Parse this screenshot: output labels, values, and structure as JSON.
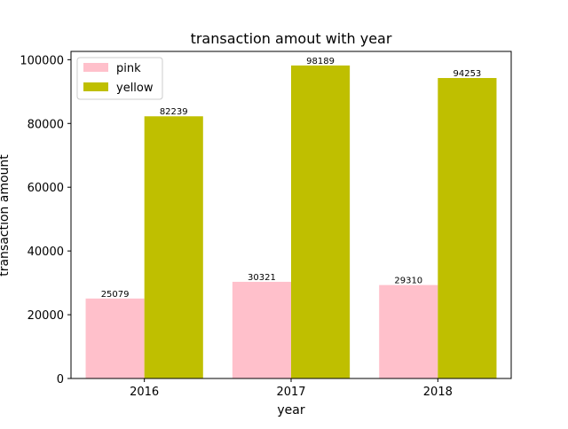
{
  "chart_data": {
    "type": "bar",
    "title": "transaction amout with year",
    "xlabel": "year",
    "ylabel": "transaction amount",
    "categories": [
      "2016",
      "2017",
      "2018"
    ],
    "series": [
      {
        "name": "pink",
        "values": [
          25079,
          30321,
          29310
        ],
        "color": "#ffc0cb"
      },
      {
        "name": "yellow",
        "values": [
          82239,
          98189,
          94253
        ],
        "color": "#bfbf00"
      }
    ],
    "ylim": [
      0,
      102600
    ],
    "yticks": [
      0,
      20000,
      40000,
      60000,
      80000,
      100000
    ],
    "legend_position": "top-left",
    "grid": false
  }
}
